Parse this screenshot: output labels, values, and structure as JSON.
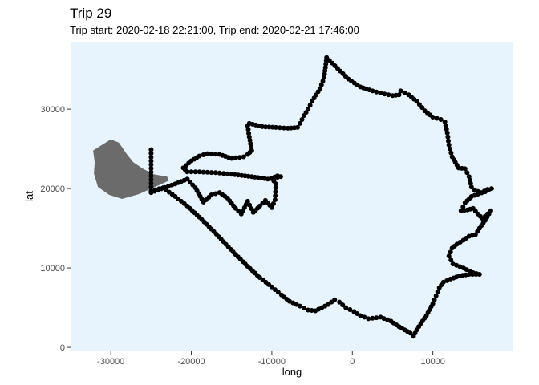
{
  "chart_data": {
    "type": "scatter",
    "title": "Trip 29",
    "subtitle": "Trip start: 2020-02-18 22:21:00, Trip end: 2020-02-21 17:46:00",
    "xlabel": "long",
    "ylabel": "lat",
    "xlim": [
      -35000,
      20000
    ],
    "ylim": [
      -500,
      38500
    ],
    "xticks": [
      -30000,
      -20000,
      -10000,
      0,
      10000
    ],
    "xtick_labels": [
      "-30000",
      "-20000",
      "-10000",
      "0",
      "10000"
    ],
    "yticks": [
      0,
      10000,
      20000,
      30000
    ],
    "ytick_labels": [
      "0",
      "10000",
      "20000",
      "30000"
    ],
    "grid": false,
    "background_color": "#e8f4fd",
    "point_color": "#000000",
    "land_color": "#6b6b6b",
    "land_polygon": [
      [
        -32200,
        24800
      ],
      [
        -30000,
        26200
      ],
      [
        -29000,
        25800
      ],
      [
        -28000,
        24300
      ],
      [
        -27200,
        23300
      ],
      [
        -26000,
        22500
      ],
      [
        -24700,
        21800
      ],
      [
        -23000,
        21500
      ],
      [
        -22800,
        21000
      ],
      [
        -24300,
        20300
      ],
      [
        -26500,
        19300
      ],
      [
        -28600,
        18700
      ],
      [
        -30200,
        19200
      ],
      [
        -31600,
        20200
      ],
      [
        -32100,
        21900
      ],
      [
        -32000,
        23300
      ]
    ],
    "track": [
      [
        -25000,
        19500
      ],
      [
        -22000,
        20600
      ],
      [
        -20500,
        21200
      ],
      [
        -19500,
        20100
      ],
      [
        -18500,
        18300
      ],
      [
        -17500,
        19200
      ],
      [
        -16500,
        19500
      ],
      [
        -15500,
        18800
      ],
      [
        -14500,
        17500
      ],
      [
        -13800,
        16800
      ],
      [
        -13000,
        18400
      ],
      [
        -12300,
        17000
      ],
      [
        -11500,
        17800
      ],
      [
        -10800,
        18500
      ],
      [
        -10000,
        17600
      ],
      [
        -9600,
        18600
      ],
      [
        -9500,
        20600
      ],
      [
        -10000,
        21300
      ],
      [
        -9300,
        21600
      ],
      [
        -8900,
        21500
      ],
      [
        -10500,
        21200
      ],
      [
        -12500,
        21500
      ],
      [
        -15000,
        21800
      ],
      [
        -17000,
        22000
      ],
      [
        -19000,
        22100
      ],
      [
        -20500,
        22100
      ],
      [
        -21000,
        22600
      ],
      [
        -20000,
        23500
      ],
      [
        -19000,
        24100
      ],
      [
        -18000,
        24400
      ],
      [
        -16500,
        24300
      ],
      [
        -15000,
        23800
      ],
      [
        -13500,
        24000
      ],
      [
        -13000,
        24300
      ],
      [
        -12500,
        24800
      ],
      [
        -12800,
        26500
      ],
      [
        -13000,
        27900
      ],
      [
        -12800,
        28200
      ],
      [
        -11200,
        27800
      ],
      [
        -9500,
        27700
      ],
      [
        -8000,
        27600
      ],
      [
        -6800,
        27700
      ],
      [
        -6500,
        28200
      ],
      [
        -6000,
        29200
      ],
      [
        -5500,
        30000
      ],
      [
        -5000,
        31000
      ],
      [
        -4500,
        31800
      ],
      [
        -4000,
        32600
      ],
      [
        -3500,
        34000
      ],
      [
        -3200,
        36500
      ],
      [
        -2500,
        35800
      ],
      [
        -1500,
        34800
      ],
      [
        -500,
        33800
      ],
      [
        1000,
        32800
      ],
      [
        2500,
        32300
      ],
      [
        4000,
        31900
      ],
      [
        5000,
        31700
      ],
      [
        5800,
        31800
      ],
      [
        6000,
        32300
      ],
      [
        7000,
        31800
      ],
      [
        8000,
        31000
      ],
      [
        9000,
        29800
      ],
      [
        10000,
        29000
      ],
      [
        11000,
        28700
      ],
      [
        11500,
        28400
      ],
      [
        11800,
        27000
      ],
      [
        12000,
        25500
      ],
      [
        12400,
        24000
      ],
      [
        13200,
        22600
      ],
      [
        14000,
        22500
      ],
      [
        14500,
        21500
      ],
      [
        14800,
        20200
      ],
      [
        15200,
        19800
      ],
      [
        16000,
        19500
      ],
      [
        16800,
        19900
      ],
      [
        17300,
        20000
      ],
      [
        16500,
        19600
      ],
      [
        15600,
        19300
      ],
      [
        14800,
        19000
      ],
      [
        14000,
        18200
      ],
      [
        13500,
        17200
      ],
      [
        14300,
        17300
      ],
      [
        15000,
        17500
      ],
      [
        15600,
        16800
      ],
      [
        16200,
        16200
      ],
      [
        16800,
        16800
      ],
      [
        17200,
        17200
      ],
      [
        16500,
        16000
      ],
      [
        15800,
        15000
      ],
      [
        15300,
        14200
      ],
      [
        14500,
        14000
      ],
      [
        13800,
        13500
      ],
      [
        13000,
        13000
      ],
      [
        12400,
        12500
      ],
      [
        12000,
        11500
      ],
      [
        12500,
        10500
      ],
      [
        13800,
        10000
      ],
      [
        15000,
        9400
      ],
      [
        15800,
        9200
      ],
      [
        14500,
        9200
      ],
      [
        13300,
        9000
      ],
      [
        12200,
        8600
      ],
      [
        11300,
        8200
      ],
      [
        10800,
        7500
      ],
      [
        10400,
        6500
      ],
      [
        10000,
        5500
      ],
      [
        9200,
        4000
      ],
      [
        8500,
        3000
      ],
      [
        8000,
        2200
      ],
      [
        7600,
        1400
      ],
      [
        7200,
        1800
      ],
      [
        6500,
        2200
      ],
      [
        5800,
        2600
      ],
      [
        4800,
        3300
      ],
      [
        3500,
        3800
      ],
      [
        2000,
        3600
      ],
      [
        1000,
        4000
      ],
      [
        200,
        4500
      ],
      [
        -800,
        5000
      ],
      [
        -1600,
        5700
      ],
      [
        -2200,
        6000
      ],
      [
        -3000,
        5400
      ],
      [
        -3800,
        5000
      ],
      [
        -4600,
        4600
      ],
      [
        -5500,
        4700
      ],
      [
        -6500,
        5200
      ],
      [
        -7800,
        5800
      ],
      [
        -8800,
        6600
      ],
      [
        -10000,
        7600
      ],
      [
        -11500,
        8800
      ],
      [
        -13000,
        10200
      ],
      [
        -14500,
        11700
      ],
      [
        -16000,
        13300
      ],
      [
        -17500,
        14900
      ],
      [
        -19000,
        16400
      ],
      [
        -20500,
        17800
      ],
      [
        -22000,
        19000
      ],
      [
        -23500,
        20100
      ],
      [
        -25000,
        19700
      ],
      [
        -25000,
        24900
      ]
    ]
  }
}
